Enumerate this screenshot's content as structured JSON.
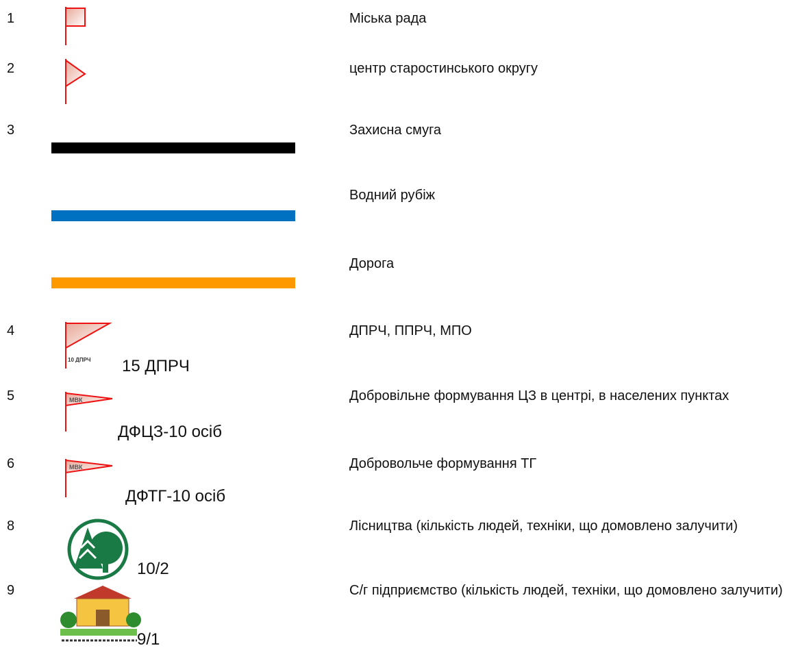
{
  "rows": [
    {
      "number": "1",
      "description": "Міська рада"
    },
    {
      "number": "2",
      "description": "центр старостинського округу"
    },
    {
      "number": "3",
      "description": "Захисна смуга"
    },
    {
      "description": "Водний рубіж"
    },
    {
      "description": "Дорога"
    },
    {
      "number": "4",
      "flag_label": "10 ДПРЧ",
      "caption": "15 ДПРЧ",
      "description": "ДПРЧ, ППРЧ, МПО"
    },
    {
      "number": "5",
      "flag_label": "МВК",
      "caption": "ДФЦЗ-10 осіб",
      "description": "Добровільне формування ЦЗ в центрі, в населених пунктах"
    },
    {
      "number": "6",
      "flag_label": "МВК",
      "caption": "ДФТГ-10 осіб",
      "description": "Добровольче формування ТГ"
    },
    {
      "number": "8",
      "caption": "10/2",
      "description": "Лісництва (кількість людей, техніки, що домовлено залучити)"
    },
    {
      "number": "9",
      "caption": "9/1",
      "description": "С/г підприємство (кількість людей, техніки, що домовлено залучити)"
    }
  ]
}
